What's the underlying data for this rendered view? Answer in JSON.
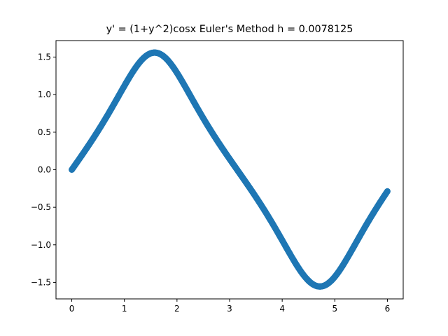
{
  "chart_data": {
    "type": "scatter",
    "title": "y' = (1+y^2)cosx Euler's Method h = 0.0078125",
    "xlabel": "",
    "ylabel": "",
    "x_ticks": [
      "0",
      "1",
      "2",
      "3",
      "4",
      "5",
      "6"
    ],
    "y_ticks": [
      "−1.5",
      "−1.0",
      "−0.5",
      "0.0",
      "0.5",
      "1.0",
      "1.5"
    ],
    "xlim": [
      -0.3,
      6.3
    ],
    "ylim": [
      -1.72,
      1.72
    ],
    "grid": false,
    "series": [
      {
        "color": "#1f77b4",
        "x_range": [
          0,
          6
        ],
        "step": 0.0078125,
        "initial_y": 0,
        "equation": "y' = (1+y^2)cosx",
        "sample_points": [
          {
            "x": 0.0,
            "y": 0.0
          },
          {
            "x": 0.5,
            "y": 0.51
          },
          {
            "x": 1.0,
            "y": 1.12
          },
          {
            "x": 1.57,
            "y": 1.57
          },
          {
            "x": 2.0,
            "y": 1.13
          },
          {
            "x": 2.5,
            "y": 0.63
          },
          {
            "x": 3.0,
            "y": 0.14
          },
          {
            "x": 3.5,
            "y": -0.35
          },
          {
            "x": 4.0,
            "y": -0.87
          },
          {
            "x": 4.5,
            "y": -1.42
          },
          {
            "x": 4.71,
            "y": -1.57
          },
          {
            "x": 5.0,
            "y": -1.36
          },
          {
            "x": 5.5,
            "y": -0.8
          },
          {
            "x": 6.0,
            "y": -0.29
          }
        ]
      }
    ]
  }
}
